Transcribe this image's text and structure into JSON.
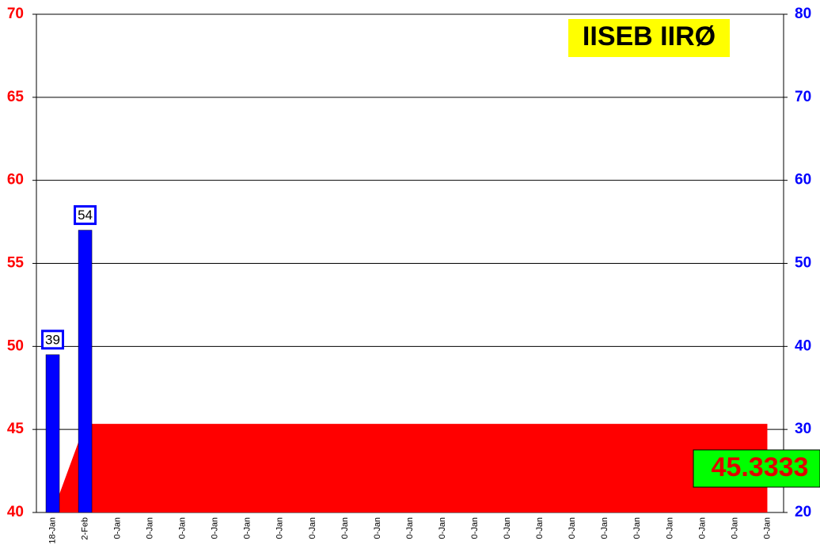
{
  "chart_data": {
    "type": "bar-area",
    "title": "IISEB IIRØ",
    "annotation": "45.3333",
    "categories": [
      "18-Jan",
      "2-Feb",
      "0-Jan",
      "0-Jan",
      "0-Jan",
      "0-Jan",
      "0-Jan",
      "0-Jan",
      "0-Jan",
      "0-Jan",
      "0-Jan",
      "0-Jan",
      "0-Jan",
      "0-Jan",
      "0-Jan",
      "0-Jan",
      "0-Jan",
      "0-Jan",
      "0-Jan",
      "0-Jan",
      "0-Jan",
      "0-Jan",
      "0-Jan"
    ],
    "series": [
      {
        "type": "bar",
        "axis": "y2",
        "color": "#0000ff",
        "values": [
          39,
          54,
          null,
          null,
          null,
          null,
          null,
          null,
          null,
          null,
          null,
          null,
          null,
          null,
          null,
          null,
          null,
          null,
          null,
          null,
          null,
          null,
          null
        ]
      },
      {
        "type": "area",
        "axis": "y",
        "color": "#ff0000",
        "values": [
          40,
          45.3333,
          45.3333,
          45.3333,
          45.3333,
          45.3333,
          45.3333,
          45.3333,
          45.3333,
          45.3333,
          45.3333,
          45.3333,
          45.3333,
          45.3333,
          45.3333,
          45.3333,
          45.3333,
          45.3333,
          45.3333,
          45.3333,
          45.3333,
          45.3333,
          45.3333
        ]
      }
    ],
    "ylim": [
      40,
      70
    ],
    "yticks": [
      40,
      45,
      50,
      55,
      60,
      65,
      70
    ],
    "y2lim": [
      20,
      80
    ],
    "y2ticks": [
      20,
      30,
      40,
      50,
      60,
      70,
      80
    ],
    "grid": true
  }
}
